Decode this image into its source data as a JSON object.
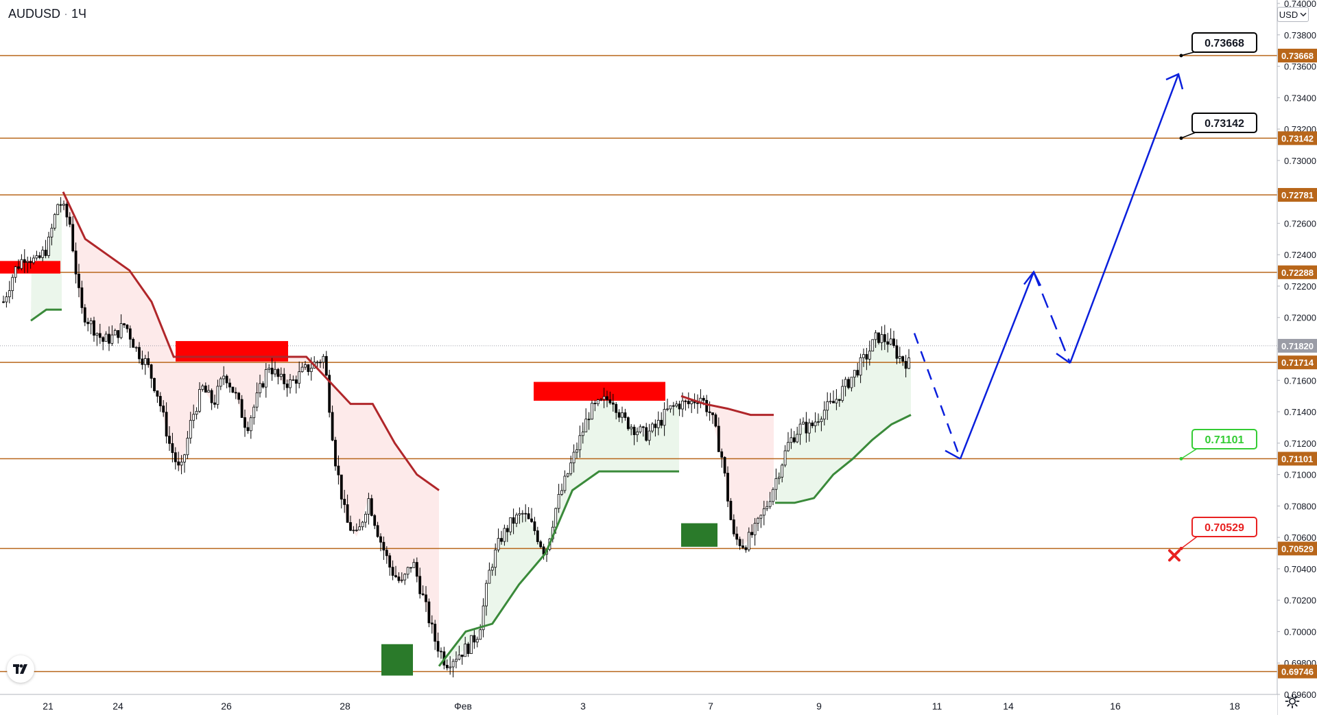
{
  "header": {
    "symbol": "AUDUSD",
    "separator": "·",
    "interval": "1Ч"
  },
  "currency": {
    "label": "USD"
  },
  "icons": {
    "logo": "tradingview-logo-icon",
    "settings": "gear-icon",
    "currency_chevron": "chevron-down-icon",
    "invalidation": "x-mark-icon"
  },
  "colors": {
    "level_line": "#b8661a",
    "level_badge": "#b8661a",
    "last_price_badge": "#9a9ca6",
    "candle": "#000000",
    "trend_down": "#b0262a",
    "trend_up": "#3a8a3a",
    "down_fill": "#fde8e8",
    "up_fill": "#e9f5e9",
    "supply_zone": "#ff0000",
    "demand_zone": "#2a7a2a",
    "projection": "#0a1fdc",
    "target_label_border": "#000000",
    "support_label": "#33cc33",
    "stop_label": "#e82020"
  },
  "chart_data": {
    "type": "candlestick",
    "instrument": "AUDUSD",
    "timeframe": "1Ч",
    "ylim": [
      0.696,
      0.74
    ],
    "y_ticks": [
      "0.74000",
      "0.73800",
      "0.73600",
      "0.73400",
      "0.73200",
      "0.73000",
      "0.72800",
      "0.72600",
      "0.72400",
      "0.72200",
      "0.72000",
      "0.71800",
      "0.71600",
      "0.71400",
      "0.71200",
      "0.71000",
      "0.70800",
      "0.70600",
      "0.70400",
      "0.70200",
      "0.70000",
      "0.69800",
      "0.69600"
    ],
    "x_ticks": [
      "21",
      "24",
      "26",
      "28",
      "Фев",
      "3",
      "7",
      "9",
      "11",
      "14",
      "16",
      "18"
    ],
    "last_price": "0.71820",
    "levels": [
      "0.73668",
      "0.73142",
      "0.72781",
      "0.72288",
      "0.71714",
      "0.71101",
      "0.70529",
      "0.69746"
    ],
    "annotations": {
      "target_1": "0.73668",
      "target_2": "0.73142",
      "support": "0.71101",
      "stop": "0.70529"
    },
    "price_path": [
      0.721,
      0.723,
      0.724,
      0.7235,
      0.7245,
      0.7275,
      0.726,
      0.7205,
      0.7195,
      0.7185,
      0.7188,
      0.7196,
      0.718,
      0.717,
      0.715,
      0.712,
      0.71,
      0.7135,
      0.7155,
      0.7145,
      0.7165,
      0.715,
      0.713,
      0.715,
      0.717,
      0.716,
      0.7158,
      0.7165,
      0.717,
      0.7175,
      0.711,
      0.707,
      0.706,
      0.7085,
      0.706,
      0.704,
      0.703,
      0.7045,
      0.702,
      0.6995,
      0.698,
      0.6985,
      0.699,
      0.7,
      0.704,
      0.706,
      0.707,
      0.7075,
      0.7065,
      0.705,
      0.708,
      0.71,
      0.712,
      0.714,
      0.7145,
      0.715,
      0.7135,
      0.713,
      0.7125,
      0.713,
      0.714,
      0.7145,
      0.7145,
      0.715,
      0.7138,
      0.711,
      0.706,
      0.7055,
      0.7065,
      0.708,
      0.71,
      0.712,
      0.713,
      0.713,
      0.714,
      0.7145,
      0.7155,
      0.7165,
      0.7175,
      0.7188,
      0.7185,
      0.7175,
      0.717
    ],
    "supertrend_down": [
      [
        0.728,
        0.725,
        0.724,
        0.723,
        0.721,
        0.7175,
        0.7175,
        0.7175,
        0.7175,
        0.7175,
        0.7175,
        0.7175,
        0.716,
        0.7145,
        0.7145,
        0.712,
        0.71,
        0.709,
        0.7055,
        0.7055,
        0.7055
      ]
    ],
    "supertrend_up": [
      [
        0.7198,
        0.7205,
        0.7205
      ]
    ],
    "supply_zones": [
      [
        0.7228,
        0.7236
      ],
      [
        0.7172,
        0.7185
      ],
      [
        0.7147,
        0.7159
      ]
    ],
    "demand_zones": [
      [
        0.6972,
        0.6992
      ],
      [
        0.7054,
        0.7069
      ]
    ],
    "projection": [
      0.719,
      0.711,
      0.7229,
      0.7171,
      0.7355
    ]
  }
}
